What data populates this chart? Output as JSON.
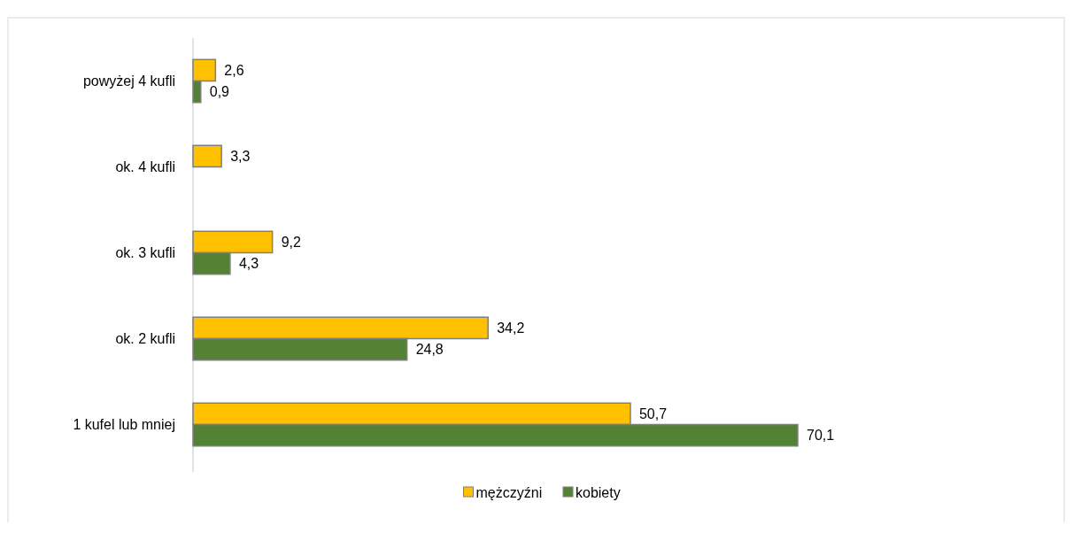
{
  "chart_data": {
    "type": "bar",
    "orientation": "horizontal",
    "categories": [
      "powyżej 4 kufli",
      "ok. 4 kufli",
      "ok. 3 kufli",
      "ok. 2 kufli",
      "1 kufel lub mniej"
    ],
    "tick_labels": "y",
    "legend": "bottom",
    "series": [
      {
        "name": "mężczyźni",
        "color": "#ffc000",
        "values": [
          2.6,
          3.3,
          9.2,
          34.2,
          50.7
        ],
        "value_labels": [
          "2,6",
          "3,3",
          "9,2",
          "34,2",
          "50,7"
        ]
      },
      {
        "name": "kobiety",
        "color": "#548235",
        "values": [
          0.9,
          null,
          4.3,
          24.8,
          70.1
        ],
        "value_labels": [
          "0,9",
          null,
          "4,3",
          "24,8",
          "70,1"
        ]
      }
    ]
  }
}
